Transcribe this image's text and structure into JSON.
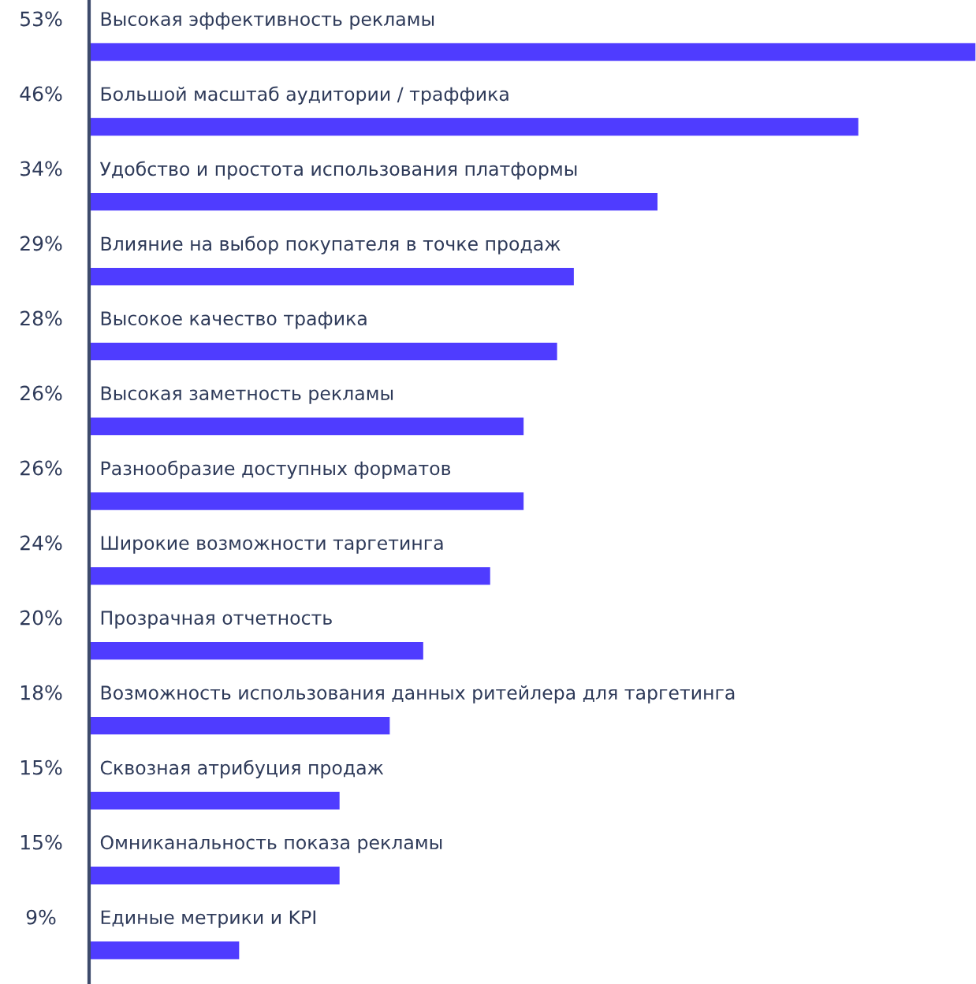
{
  "chart_data": {
    "type": "bar",
    "orientation": "horizontal",
    "categories": [
      "Высокая эффективность рекламы",
      "Большой масштаб аудитории / траффика",
      "Удобство и простота использования платформы",
      "Влияние на выбор покупателя в точке продаж",
      "Высокое качество трафика",
      "Высокая заметность рекламы",
      "Разнообразие доступных форматов",
      "Широкие возможности таргетинга",
      "Прозрачная отчетность",
      "Возможность использования данных ритейлера для таргетинга",
      "Сквозная атрибуция продаж",
      "Омниканальность показа рекламы",
      "Единые метрики и KPI"
    ],
    "values": [
      53,
      46,
      34,
      29,
      28,
      26,
      26,
      24,
      20,
      18,
      15,
      15,
      9
    ],
    "value_labels": [
      "53%",
      "46%",
      "34%",
      "29%",
      "28%",
      "26%",
      "26%",
      "24%",
      "20%",
      "18%",
      "15%",
      "15%",
      "9%"
    ],
    "color": "#4f3cff"
  }
}
